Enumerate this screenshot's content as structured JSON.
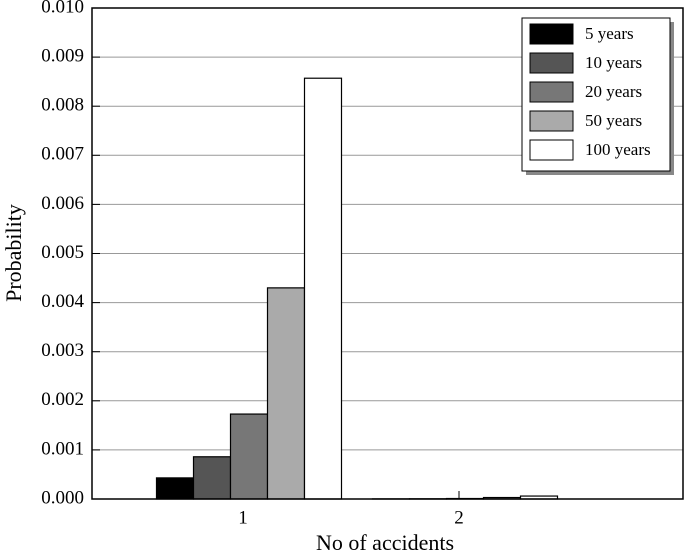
{
  "chart_data": {
    "type": "bar",
    "xlabel": "No of accidents",
    "ylabel": "Probability",
    "categories": [
      "1",
      "2"
    ],
    "series": [
      {
        "name": "5 years",
        "color": "#000000",
        "values": [
          0.00043,
          2e-06
        ]
      },
      {
        "name": "10 years",
        "color": "#555555",
        "values": [
          0.00086,
          4e-06
        ]
      },
      {
        "name": "20 years",
        "color": "#777777",
        "values": [
          0.00173,
          1e-05
        ]
      },
      {
        "name": "50 years",
        "color": "#aaaaaa",
        "values": [
          0.0043,
          3e-05
        ]
      },
      {
        "name": "100 years",
        "color": "#ffffff",
        "values": [
          0.00857,
          6e-05
        ]
      }
    ],
    "ylim": [
      0,
      0.01
    ],
    "yticks": [
      {
        "value": 0,
        "label": "0.000"
      },
      {
        "value": 0.001,
        "label": "0.001"
      },
      {
        "value": 0.002,
        "label": "0.002"
      },
      {
        "value": 0.003,
        "label": "0.003"
      },
      {
        "value": 0.004,
        "label": "0.004"
      },
      {
        "value": 0.005,
        "label": "0.005"
      },
      {
        "value": 0.006,
        "label": "0.006"
      },
      {
        "value": 0.007,
        "label": "0.007"
      },
      {
        "value": 0.008,
        "label": "0.008"
      },
      {
        "value": 0.009,
        "label": "0.009"
      },
      {
        "value": 0.01,
        "label": "0.010"
      }
    ],
    "grid": true,
    "legend": "upper right"
  }
}
